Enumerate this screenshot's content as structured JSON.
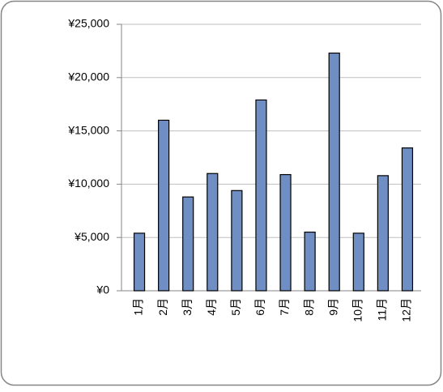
{
  "chart_data": {
    "type": "bar",
    "categories": [
      "1月",
      "2月",
      "3月",
      "4月",
      "5月",
      "6月",
      "7月",
      "8月",
      "9月",
      "10月",
      "11月",
      "12月"
    ],
    "values": [
      5400,
      16000,
      8800,
      11000,
      9400,
      17900,
      10900,
      5500,
      22300,
      5400,
      10800,
      13400
    ],
    "color": "#6f8fc4",
    "ylim": [
      0,
      25000
    ],
    "yticks": [
      {
        "value": 0,
        "label": "¥0"
      },
      {
        "value": 5000,
        "label": "¥5,000"
      },
      {
        "value": 10000,
        "label": "¥10,000"
      },
      {
        "value": 15000,
        "label": "¥15,000"
      },
      {
        "value": 20000,
        "label": "¥20,000"
      },
      {
        "value": 25000,
        "label": "¥25,000"
      }
    ],
    "grid": true
  }
}
